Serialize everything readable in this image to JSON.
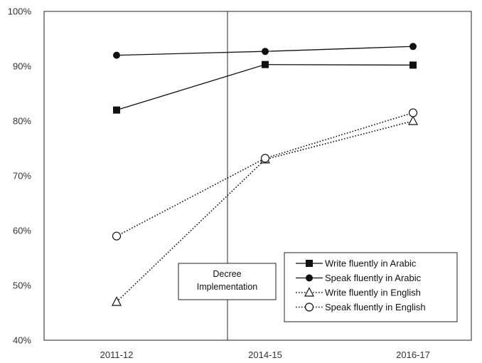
{
  "chart_data": {
    "type": "line",
    "categories": [
      "2011-12",
      "2014-15",
      "2016-17"
    ],
    "ylim": [
      40,
      100
    ],
    "yticks": [
      40,
      50,
      60,
      70,
      80,
      90,
      100
    ],
    "ytick_labels": [
      "40%",
      "50%",
      "60%",
      "70%",
      "80%",
      "90%",
      "100%"
    ],
    "grid": false,
    "legend_position": "bottom-right",
    "series": [
      {
        "name": "Write fluently in Arabic",
        "values": [
          82,
          90.3,
          90.2
        ],
        "marker": "square-filled",
        "line": "solid",
        "color": "#111111"
      },
      {
        "name": "Speak fluently in Arabic",
        "values": [
          92,
          92.7,
          93.6
        ],
        "marker": "circle-filled",
        "line": "solid",
        "color": "#111111"
      },
      {
        "name": "Write fluently in English",
        "values": [
          47,
          73,
          80
        ],
        "marker": "triangle-open",
        "line": "dotted",
        "color": "#111111"
      },
      {
        "name": "Speak fluently in English",
        "values": [
          59,
          73.2,
          81.5
        ],
        "marker": "circle-open",
        "line": "dotted",
        "color": "#111111"
      }
    ],
    "annotation": {
      "lines": [
        "Decree",
        "Implementation"
      ],
      "between": [
        "2011-12",
        "2014-15"
      ]
    }
  }
}
